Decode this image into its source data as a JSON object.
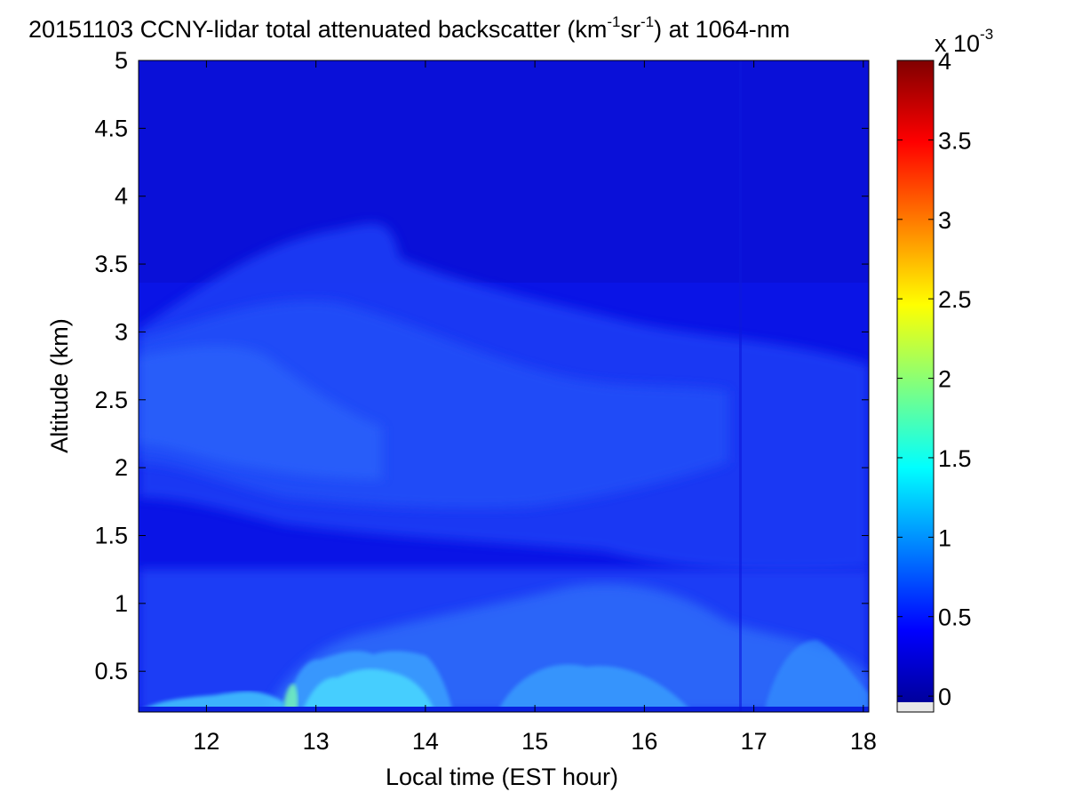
{
  "chart_data": {
    "type": "heatmap",
    "title_date": "20151103",
    "title_main": "CCNY-lidar total attenuated backscatter (km",
    "title_exp1": "-1",
    "title_sr": "sr",
    "title_exp2": "-1",
    "title_end": ") at 1064-nm",
    "colorbar_multiplier_base": "x 10",
    "colorbar_multiplier_exp": "-3",
    "xlabel": "Local time (EST hour)",
    "ylabel": "Altitude (km)",
    "xlim": [
      11.38,
      18.05
    ],
    "ylim": [
      0.2,
      5.0
    ],
    "x_ticks": [
      12,
      13,
      14,
      15,
      16,
      17,
      18
    ],
    "x_tick_labels": [
      "12",
      "13",
      "14",
      "15",
      "16",
      "17",
      "18"
    ],
    "y_ticks": [
      0.5,
      1,
      1.5,
      2,
      2.5,
      3,
      3.5,
      4,
      4.5,
      5
    ],
    "y_tick_labels": [
      "0.5",
      "1",
      "1.5",
      "2",
      "2.5",
      "3",
      "3.5",
      "4",
      "4.5",
      "5"
    ],
    "colorbar": {
      "colormap": "jet",
      "range": [
        -0.1,
        4.0
      ],
      "ticks": [
        0,
        0.5,
        1,
        1.5,
        2,
        2.5,
        3,
        3.5,
        4
      ],
      "tick_labels": [
        "0",
        "0.5",
        "1",
        "1.5",
        "2",
        "2.5",
        "3",
        "3.5",
        "4"
      ],
      "units": "x 10^-3 km^-1 sr^-1"
    },
    "field_description_values": {
      "free_troposphere_above_3.5km": 0.25,
      "elevated_aerosol_layer_1.5_to_3.5km": 0.6,
      "boundary_layer_below_1km": 0.9,
      "near_surface_plumes_peak": 1.8,
      "layer_top_altitude_km": [
        {
          "t": 11.4,
          "z": 3.0
        },
        {
          "t": 12.5,
          "z": 3.6
        },
        {
          "t": 13.2,
          "z": 3.75
        },
        {
          "t": 13.7,
          "z": 3.85
        },
        {
          "t": 14.3,
          "z": 3.35
        },
        {
          "t": 15.0,
          "z": 3.2
        },
        {
          "t": 16.0,
          "z": 3.0
        },
        {
          "t": 17.0,
          "z": 3.1
        },
        {
          "t": 18.0,
          "z": 2.8
        }
      ]
    }
  }
}
